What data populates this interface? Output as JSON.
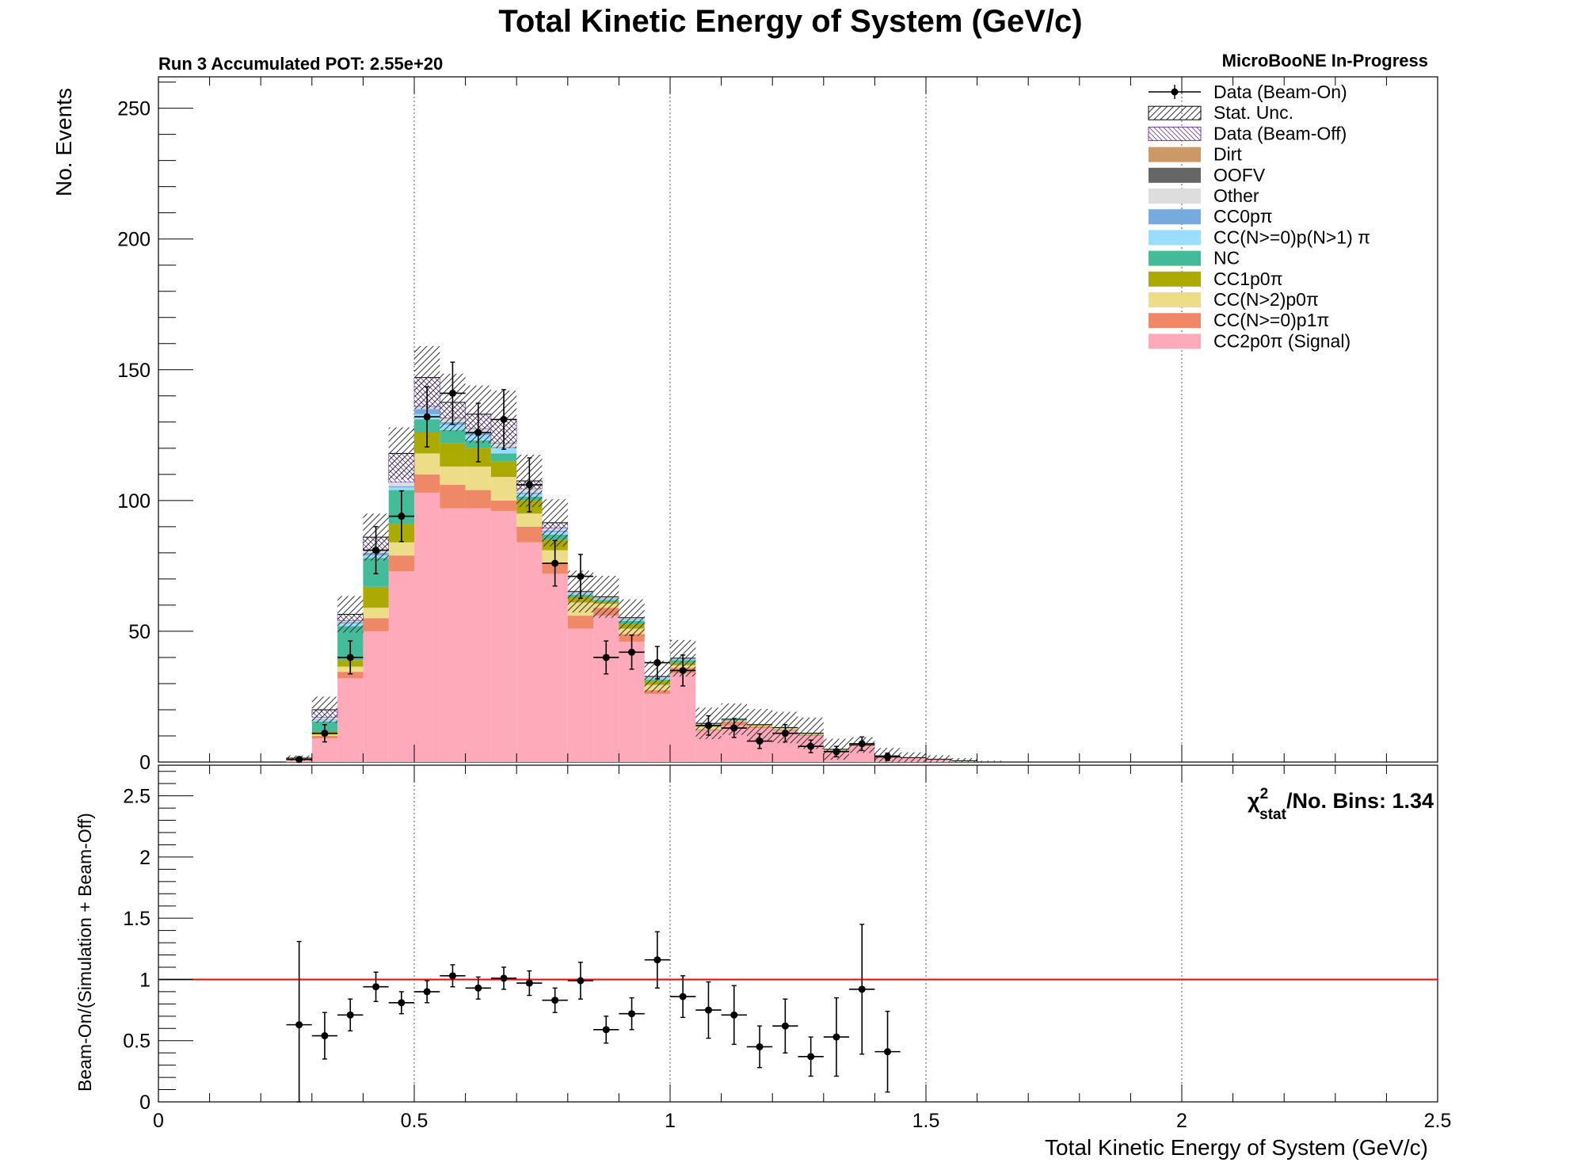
{
  "chart_data": [
    {
      "type": "bar",
      "stacked": true,
      "title": "Total Kinetic Energy of System (GeV/c)",
      "top_left_label": "Run 3 Accumulated POT: 2.55e+20",
      "top_right_label": "MicroBooNE In-Progress",
      "ylabel": "No. Events",
      "xlim": [
        0,
        2.5
      ],
      "ylim": [
        0,
        262
      ],
      "bin_width": 0.05,
      "grid_x": [
        0.5,
        1.0,
        1.5,
        2.0
      ],
      "x_ticks": [
        "0",
        "0.5",
        "1",
        "1.5",
        "2",
        "2.5"
      ],
      "y_ticks": [
        "0",
        "50",
        "100",
        "150",
        "200",
        "250"
      ],
      "legend_position": "top-right",
      "x": [
        0.275,
        0.325,
        0.375,
        0.425,
        0.475,
        0.525,
        0.575,
        0.625,
        0.675,
        0.725,
        0.775,
        0.825,
        0.875,
        0.925,
        0.975,
        1.025,
        1.075,
        1.125,
        1.175,
        1.225,
        1.275,
        1.325,
        1.375,
        1.425,
        1.475,
        1.525,
        1.575,
        1.625
      ],
      "series": [
        {
          "name": "CC2p0π (Signal)",
          "color": "#ffaabb",
          "values": [
            0.5,
            9,
            32,
            50,
            73,
            103,
            97,
            97,
            96,
            84,
            72,
            51,
            56,
            46,
            26,
            34,
            12,
            14,
            13,
            12,
            10,
            4,
            6,
            2,
            1.5,
            1,
            0.5,
            0
          ]
        },
        {
          "name": "CC(N>=0)p1π",
          "color": "#ee8866",
          "values": [
            0.2,
            1,
            2.5,
            5,
            6,
            7,
            9,
            7,
            4,
            6,
            4,
            5,
            3,
            3,
            1.5,
            2,
            0.5,
            1.5,
            0.5,
            0.5,
            0.5,
            0.5,
            0.3,
            0.2,
            0.2,
            0.1,
            0,
            0
          ]
        },
        {
          "name": "CC(N>2)p0π",
          "color": "#eedd88",
          "values": [
            0.1,
            0.5,
            2,
            4,
            5,
            8,
            7,
            9,
            9,
            5,
            5,
            5,
            1.5,
            2,
            2,
            1,
            1,
            0.3,
            0.3,
            0.3,
            0.2,
            0.2,
            0.1,
            0.1,
            0,
            0,
            0,
            0
          ]
        },
        {
          "name": "CC1p0π",
          "color": "#aaaa00",
          "values": [
            0.1,
            1,
            2.5,
            8,
            7,
            8,
            9,
            7,
            6,
            5,
            4,
            2,
            1,
            2,
            1.5,
            1,
            0.5,
            0.2,
            0.2,
            0.1,
            0.1,
            0.1,
            0,
            0,
            0,
            0,
            0,
            0
          ]
        },
        {
          "name": "NC",
          "color": "#44bb99",
          "values": [
            0.1,
            4,
            13,
            11,
            13,
            5,
            5,
            3,
            3,
            1.5,
            2,
            1,
            0.5,
            1,
            0.5,
            1,
            0.3,
            0.2,
            0.1,
            0.1,
            0.1,
            0,
            0,
            0,
            0,
            0,
            0,
            0
          ]
        },
        {
          "name": "CC(N>=0)p(N>1) π",
          "color": "#99ddff",
          "values": [
            0,
            0.5,
            1,
            1,
            1,
            2,
            2,
            2,
            2,
            1,
            1,
            0.5,
            0.5,
            0.5,
            0.5,
            0.3,
            0.2,
            0.1,
            0.1,
            0.1,
            0,
            0,
            0,
            0,
            0,
            0,
            0,
            0
          ]
        },
        {
          "name": "CC0pπ",
          "color": "#77aadd",
          "values": [
            0,
            0.2,
            0.5,
            1,
            0.5,
            2,
            1,
            1,
            0.5,
            0.5,
            0.5,
            0.2,
            0.2,
            0.2,
            0.2,
            0.1,
            0.1,
            0,
            0,
            0,
            0,
            0,
            0,
            0,
            0,
            0,
            0,
            0
          ]
        },
        {
          "name": "Other",
          "color": "#dddddd",
          "values": [
            0,
            1,
            0.5,
            1,
            1.5,
            1,
            1.5,
            1.5,
            1.5,
            1.5,
            1,
            0.5,
            0.5,
            0.5,
            0.5,
            0.3,
            0.2,
            0.1,
            0.1,
            0.1,
            0.1,
            0.1,
            0.1,
            0.1,
            0,
            0,
            0,
            0
          ]
        },
        {
          "name": "OOFV",
          "color": "#666666",
          "values": [
            0,
            0,
            0,
            0,
            0,
            0,
            0,
            0,
            0,
            0,
            0,
            0,
            0,
            0,
            0,
            0,
            0,
            0,
            0,
            0,
            0,
            0,
            0,
            0,
            0,
            0,
            0,
            0
          ]
        },
        {
          "name": "Dirt",
          "color": "#cc9966",
          "values": [
            0,
            0,
            0,
            0,
            0,
            0,
            0,
            0,
            0,
            0,
            0,
            0,
            0,
            0,
            0,
            0,
            0,
            0,
            0,
            0,
            0,
            0,
            0,
            0,
            0,
            0,
            0,
            0
          ]
        },
        {
          "name": "Data (Beam-Off)",
          "color": "#ffffff",
          "values": [
            0.5,
            2.8,
            2.5,
            5,
            11,
            11,
            6,
            5.5,
            9,
            3,
            2,
            0,
            0,
            0,
            0,
            0,
            0,
            0,
            0,
            0,
            0,
            0,
            0,
            0,
            0,
            0,
            0,
            0
          ]
        }
      ],
      "stat_unc": [
        1,
        5,
        7,
        9,
        10,
        12,
        11,
        11,
        11,
        10,
        9,
        8,
        8,
        7,
        6,
        7,
        6,
        6,
        6,
        6,
        6,
        4,
        3,
        3,
        2,
        1.5,
        1,
        0.5
      ],
      "data_beam_on": {
        "name": "Data (Beam-On)",
        "x": [
          0.275,
          0.325,
          0.375,
          0.425,
          0.475,
          0.525,
          0.575,
          0.625,
          0.675,
          0.725,
          0.775,
          0.825,
          0.875,
          0.925,
          0.975,
          1.025,
          1.075,
          1.125,
          1.175,
          1.225,
          1.275,
          1.325,
          1.375,
          1.425
        ],
        "y": [
          1,
          11,
          40,
          81,
          94,
          132,
          141,
          126,
          131,
          106,
          76,
          71,
          40,
          42,
          38,
          35,
          14,
          13,
          8,
          11,
          6,
          4,
          7,
          2
        ],
        "yerr": [
          1,
          3.3,
          6.3,
          9,
          9.7,
          11.5,
          11.9,
          11.2,
          11.4,
          10.3,
          8.7,
          8.4,
          6.3,
          6.5,
          6.2,
          5.9,
          3.7,
          3.6,
          2.8,
          3.3,
          2.4,
          2,
          2.6,
          1.4
        ]
      },
      "legend_order": [
        "Data (Beam-On)",
        "Stat. Unc.",
        "Data (Beam-Off)",
        "Dirt",
        "OOFV",
        "Other",
        "CC0pπ",
        "CC(N>=0)p(N>1) π",
        "NC",
        "CC1p0π",
        "CC(N>2)p0π",
        "CC(N>=0)p1π",
        "CC2p0π (Signal)"
      ]
    },
    {
      "type": "scatter",
      "ylabel": "Beam-On/(Simulation + Beam-Off)",
      "xlabel": "Total Kinetic Energy of System (GeV/c)",
      "xlim": [
        0,
        2.5
      ],
      "ylim": [
        0,
        2.75
      ],
      "x_ticks": [
        "0",
        "0.5",
        "1",
        "1.5",
        "2",
        "2.5"
      ],
      "y_ticks": [
        "0",
        "0.5",
        "1",
        "1.5",
        "2",
        "2.5"
      ],
      "grid_x": [
        0.5,
        1.0,
        1.5,
        2.0
      ],
      "reference_line": {
        "y": 1,
        "color": "#ff0000"
      },
      "chi2_label_main": "χ",
      "chi2_sup": "2",
      "chi2_sub": "stat",
      "chi2_text": "/No. Bins: 1.34",
      "x": [
        0.275,
        0.325,
        0.375,
        0.425,
        0.475,
        0.525,
        0.575,
        0.625,
        0.675,
        0.725,
        0.775,
        0.825,
        0.875,
        0.925,
        0.975,
        1.025,
        1.075,
        1.125,
        1.175,
        1.225,
        1.275,
        1.325,
        1.375,
        1.425
      ],
      "y": [
        0.63,
        0.54,
        0.71,
        0.94,
        0.81,
        0.9,
        1.03,
        0.93,
        1.01,
        0.97,
        0.83,
        0.99,
        0.59,
        0.72,
        1.16,
        0.86,
        0.75,
        0.71,
        0.45,
        0.62,
        0.37,
        0.53,
        0.92,
        0.41
      ],
      "yerr": [
        0.68,
        0.19,
        0.13,
        0.12,
        0.09,
        0.09,
        0.09,
        0.09,
        0.09,
        0.1,
        0.1,
        0.15,
        0.11,
        0.13,
        0.23,
        0.17,
        0.23,
        0.24,
        0.17,
        0.22,
        0.16,
        0.32,
        0.53,
        0.33
      ]
    }
  ]
}
